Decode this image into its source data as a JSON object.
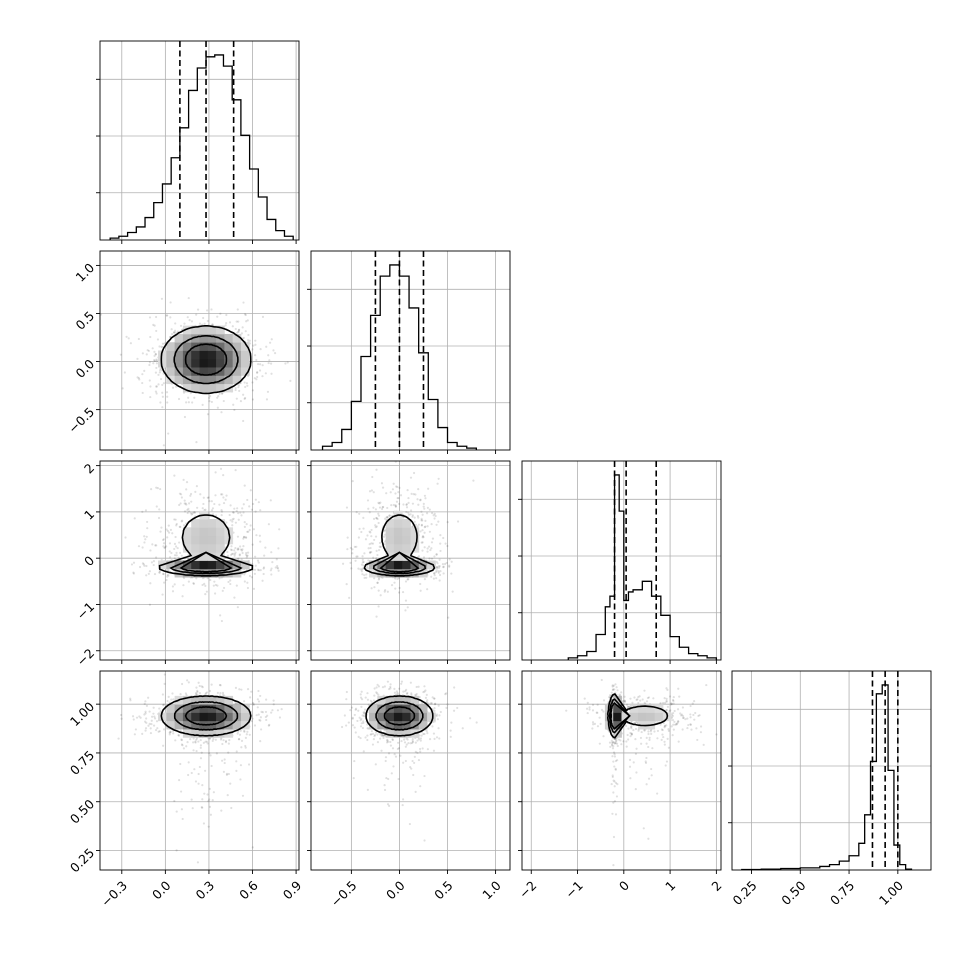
{
  "chart_data": {
    "type": "corner",
    "title": "",
    "grid": true,
    "colors": {
      "line": "#000000",
      "grid": "#b0b0b0",
      "points": "#000000"
    },
    "parameters": [
      {
        "index": 0,
        "range": [
          -0.45,
          0.92
        ],
        "ticks": [
          -0.3,
          0.0,
          0.3,
          0.6,
          0.9
        ],
        "tick_labels": [
          "−0.3",
          "0.0",
          "0.3",
          "0.6",
          "0.9"
        ],
        "mean": 0.3,
        "std": 0.15,
        "quantiles": [
          0.1,
          0.28,
          0.47
        ],
        "histogram": {
          "edges": [
            -0.38,
            -0.32,
            -0.26,
            -0.2,
            -0.14,
            -0.08,
            -0.02,
            0.04,
            0.1,
            0.16,
            0.22,
            0.28,
            0.34,
            0.4,
            0.46,
            0.52,
            0.58,
            0.64,
            0.7,
            0.76,
            0.82,
            0.88
          ],
          "counts": [
            0.01,
            0.02,
            0.04,
            0.07,
            0.12,
            0.2,
            0.3,
            0.44,
            0.6,
            0.8,
            0.92,
            0.98,
            0.99,
            0.93,
            0.75,
            0.56,
            0.38,
            0.23,
            0.11,
            0.05,
            0.02
          ]
        }
      },
      {
        "index": 1,
        "range": [
          -0.92,
          1.15
        ],
        "ticks": [
          -0.5,
          0.0,
          0.5,
          1.0
        ],
        "tick_labels": [
          "−0.5",
          "0.0",
          "0.5",
          "1.0"
        ],
        "mean": 0.0,
        "std": 0.17,
        "quantiles": [
          -0.25,
          0.0,
          0.25
        ],
        "histogram": {
          "edges": [
            -0.8,
            -0.7,
            -0.6,
            -0.5,
            -0.4,
            -0.3,
            -0.2,
            -0.1,
            0.0,
            0.1,
            0.2,
            0.3,
            0.4,
            0.5,
            0.6,
            0.7,
            0.8
          ],
          "counts": [
            0.02,
            0.04,
            0.11,
            0.26,
            0.5,
            0.72,
            0.93,
            0.99,
            0.93,
            0.76,
            0.52,
            0.27,
            0.12,
            0.04,
            0.02,
            0.01
          ]
        }
      },
      {
        "index": 2,
        "range": [
          -2.2,
          2.1
        ],
        "ticks": [
          -2,
          -1,
          0,
          1,
          2
        ],
        "tick_labels": [
          "−2",
          "−1",
          "0",
          "1",
          "2"
        ],
        "quantiles": [
          -0.2,
          0.05,
          0.7
        ],
        "histogram": {
          "edges": [
            -1.2,
            -1.0,
            -0.8,
            -0.6,
            -0.4,
            -0.3,
            -0.2,
            -0.1,
            0.0,
            0.1,
            0.2,
            0.4,
            0.6,
            0.8,
            1.0,
            1.2,
            1.4,
            1.6,
            1.8,
            2.0
          ],
          "counts": [
            0.01,
            0.02,
            0.04,
            0.12,
            0.25,
            0.3,
            0.87,
            0.7,
            0.28,
            0.32,
            0.33,
            0.37,
            0.3,
            0.21,
            0.11,
            0.06,
            0.03,
            0.02,
            0.01
          ]
        }
      },
      {
        "index": 3,
        "range": [
          0.15,
          1.17
        ],
        "ticks": [
          0.25,
          0.5,
          0.75,
          1.0
        ],
        "tick_labels": [
          "0.25",
          "0.50",
          "0.75",
          "1.00"
        ],
        "quantiles": [
          0.87,
          0.935,
          1.0
        ],
        "histogram": {
          "edges": [
            0.2,
            0.3,
            0.4,
            0.5,
            0.6,
            0.65,
            0.7,
            0.75,
            0.8,
            0.83,
            0.86,
            0.89,
            0.92,
            0.95,
            0.98,
            1.01,
            1.04,
            1.07
          ],
          "counts": [
            0.003,
            0.005,
            0.008,
            0.012,
            0.02,
            0.03,
            0.05,
            0.08,
            0.15,
            0.31,
            0.61,
            0.99,
            1.04,
            0.56,
            0.14,
            0.03,
            0.005
          ]
        }
      }
    ],
    "joint": {
      "1-0": {
        "modes": [
          {
            "cx": 0.28,
            "cy": 0.02,
            "sx": 0.15,
            "sy": 0.17,
            "w": 1
          }
        ]
      },
      "2-0": {
        "modes": [
          {
            "cx": 0.28,
            "cy": -0.2,
            "sx": 0.15,
            "sy": 0.08,
            "w": 0.5
          },
          {
            "cx": 0.28,
            "cy": 0.45,
            "sx": 0.15,
            "sy": 0.45,
            "w": 0.5
          }
        ]
      },
      "2-1": {
        "modes": [
          {
            "cx": 0.0,
            "cy": -0.2,
            "sx": 0.17,
            "sy": 0.08,
            "w": 0.5
          },
          {
            "cx": 0.0,
            "cy": 0.45,
            "sx": 0.17,
            "sy": 0.45,
            "w": 0.5
          }
        ]
      },
      "3-0": {
        "modes": [
          {
            "cx": 0.28,
            "cy": 0.94,
            "sx": 0.15,
            "sy": 0.05,
            "w": 1
          }
        ],
        "tail": true
      },
      "3-1": {
        "modes": [
          {
            "cx": 0.0,
            "cy": 0.94,
            "sx": 0.17,
            "sy": 0.05,
            "w": 1
          }
        ],
        "tail": true
      },
      "3-2": {
        "modes": [
          {
            "cx": -0.2,
            "cy": 0.94,
            "sx": 0.06,
            "sy": 0.05,
            "w": 0.5
          },
          {
            "cx": 0.45,
            "cy": 0.94,
            "sx": 0.45,
            "sy": 0.045,
            "w": 0.5
          }
        ],
        "tail": true
      }
    }
  }
}
